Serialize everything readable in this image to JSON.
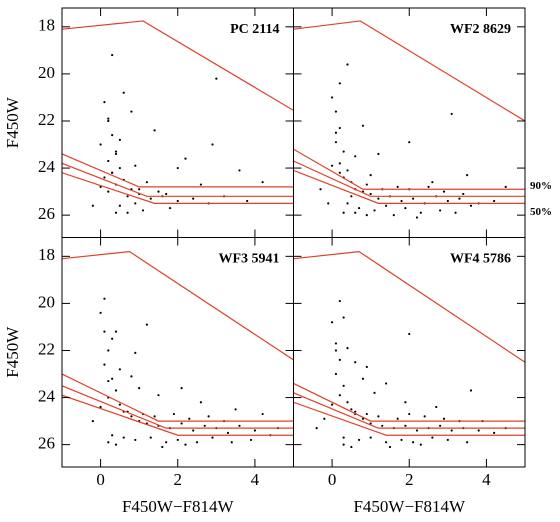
{
  "chart_data": [
    {
      "type": "scatter",
      "title": "PC 2114",
      "ylabel": "F450W",
      "xlim": [
        -1,
        5
      ],
      "ylim": [
        26.95,
        17.2
      ],
      "xticks": [
        0,
        2,
        4
      ],
      "yticks": [
        18,
        20,
        22,
        24,
        26
      ],
      "color": "#000000",
      "x": [
        0.1,
        0.2,
        0.3,
        0.0,
        0.4,
        0.2,
        0.5,
        0.3,
        0.1,
        0.6,
        0.4,
        0.8,
        0.2,
        0.7,
        1.0,
        1.3,
        0.9,
        1.6,
        2.0,
        2.4,
        1.1,
        0.5,
        1.8,
        2.8,
        3.2,
        0.3,
        0.6,
        1.4,
        2.2,
        3.6,
        0.0,
        -0.2,
        0.4,
        1.2,
        0.9,
        2.6,
        0.5,
        0.8,
        3.0,
        2.0,
        0.4,
        1.5,
        0.7,
        3.8,
        0.3,
        1.0,
        0.2,
        2.9,
        1.7,
        4.2
      ],
      "values": [
        21.2,
        22.0,
        22.6,
        23.0,
        23.4,
        23.7,
        24.0,
        24.2,
        24.4,
        24.5,
        24.7,
        24.9,
        25.0,
        25.2,
        25.1,
        25.3,
        25.5,
        25.2,
        25.4,
        25.3,
        25.8,
        25.6,
        25.7,
        25.5,
        25.2,
        19.2,
        20.8,
        22.4,
        23.6,
        24.1,
        24.8,
        25.6,
        25.9,
        24.6,
        23.9,
        24.7,
        22.8,
        21.6,
        20.2,
        24.0,
        23.3,
        25.0,
        25.9,
        25.4,
        24.2,
        24.9,
        21.9,
        23.0,
        25.1,
        24.6
      ],
      "lines": [
        {
          "color": "#e0402a",
          "x": [
            -1,
            1.1,
            5
          ],
          "values": [
            18.1,
            17.75,
            21.55
          ]
        },
        {
          "color": "#e0402a",
          "x": [
            -1,
            1.0,
            5
          ],
          "values": [
            23.4,
            24.8,
            24.8
          ]
        },
        {
          "color": "#e0402a",
          "x": [
            -1,
            1.2,
            5
          ],
          "values": [
            23.8,
            25.2,
            25.2
          ]
        },
        {
          "color": "#e0402a",
          "x": [
            -1,
            1.4,
            5
          ],
          "values": [
            24.2,
            25.5,
            25.5
          ]
        }
      ]
    },
    {
      "type": "scatter",
      "title": "WF2 8629",
      "xlim": [
        -1,
        5
      ],
      "ylim": [
        26.95,
        17.2
      ],
      "xticks": [
        0,
        2,
        4
      ],
      "yticks": [
        18,
        20,
        22,
        24,
        26
      ],
      "color": "#000000",
      "x": [
        0.0,
        0.1,
        0.2,
        0.1,
        0.3,
        0.2,
        0.4,
        0.3,
        0.5,
        0.6,
        0.2,
        0.8,
        1.0,
        1.2,
        1.5,
        1.8,
        2.1,
        2.4,
        2.7,
        3.0,
        3.3,
        3.6,
        0.4,
        0.7,
        1.1,
        1.4,
        1.9,
        2.3,
        2.8,
        3.2,
        3.8,
        4.2,
        0.6,
        0.9,
        1.3,
        1.7,
        2.0,
        2.5,
        2.9,
        3.4,
        -0.3,
        -0.1,
        0.3,
        0.5,
        1.6,
        2.2,
        0.2,
        0.1,
        0.6,
        1.0,
        3.5,
        0.9,
        2.6,
        0.4,
        4.5,
        1.2,
        0.0,
        0.8,
        2.0,
        3.1
      ],
      "values": [
        21.0,
        21.6,
        22.3,
        22.9,
        23.3,
        23.8,
        24.1,
        24.4,
        24.6,
        24.9,
        24.2,
        25.0,
        25.1,
        25.3,
        25.2,
        25.4,
        25.3,
        25.5,
        25.2,
        25.4,
        25.3,
        25.6,
        25.5,
        25.7,
        25.8,
        25.6,
        25.7,
        25.9,
        25.8,
        25.9,
        25.5,
        25.4,
        25.9,
        24.7,
        24.9,
        24.8,
        24.9,
        24.8,
        25.0,
        25.1,
        24.9,
        25.5,
        25.9,
        25.2,
        26.0,
        26.1,
        20.4,
        22.5,
        23.5,
        24.3,
        24.3,
        26.0,
        24.6,
        19.6,
        24.8,
        23.4,
        23.9,
        22.2,
        22.9,
        21.7
      ],
      "lines": [
        {
          "color": "#e0402a",
          "x": [
            -1,
            0.73,
            5
          ],
          "values": [
            18.1,
            17.75,
            22.0
          ]
        },
        {
          "color": "#e0402a",
          "x": [
            -1,
            0.8,
            5
          ],
          "values": [
            23.2,
            24.9,
            24.9
          ],
          "label": "90%"
        },
        {
          "color": "#e0402a",
          "x": [
            -1,
            1.0,
            5
          ],
          "values": [
            23.7,
            25.2,
            25.2
          ]
        },
        {
          "color": "#e0402a",
          "x": [
            -1,
            1.2,
            5
          ],
          "values": [
            24.1,
            25.5,
            25.5
          ],
          "label": "50%"
        }
      ]
    },
    {
      "type": "scatter",
      "title": "WF3 5941",
      "ylabel": "F450W",
      "xlabel": "F450W−F814W",
      "xlim": [
        -1,
        5
      ],
      "ylim": [
        26.95,
        17.2
      ],
      "xticks": [
        0,
        2,
        4
      ],
      "yticks": [
        18,
        20,
        22,
        24,
        26
      ],
      "color": "#000000",
      "x": [
        0.0,
        0.1,
        0.2,
        0.1,
        0.3,
        0.4,
        0.2,
        0.5,
        0.6,
        0.8,
        1.0,
        1.2,
        1.5,
        1.8,
        2.1,
        2.4,
        2.7,
        3.0,
        3.3,
        3.6,
        4.0,
        4.4,
        0.3,
        0.6,
        0.9,
        1.3,
        1.7,
        2.0,
        2.5,
        2.9,
        3.4,
        3.9,
        0.7,
        1.1,
        1.4,
        1.9,
        2.3,
        2.8,
        3.2,
        4.6,
        -0.2,
        0.2,
        0.4,
        1.6,
        2.2,
        0.1,
        0.3,
        0.5,
        1.0,
        2.6,
        0.0,
        0.8,
        0.4,
        3.5,
        1.5,
        0.2,
        2.1,
        0.9,
        4.2,
        1.2
      ],
      "values": [
        20.4,
        21.2,
        22.0,
        22.6,
        23.2,
        23.7,
        24.0,
        24.3,
        24.6,
        24.8,
        25.0,
        25.1,
        25.2,
        25.3,
        25.1,
        25.4,
        25.2,
        25.3,
        25.5,
        25.2,
        25.4,
        25.6,
        25.6,
        25.7,
        25.8,
        25.7,
        25.9,
        25.8,
        25.9,
        25.7,
        25.9,
        25.8,
        24.6,
        24.7,
        24.8,
        24.7,
        24.9,
        24.8,
        25.0,
        25.3,
        25.0,
        25.9,
        26.0,
        26.1,
        26.0,
        19.8,
        21.5,
        22.8,
        23.6,
        24.2,
        24.4,
        23.1,
        21.2,
        24.5,
        23.9,
        23.3,
        23.6,
        22.1,
        24.7,
        20.9
      ],
      "lines": [
        {
          "color": "#e0402a",
          "x": [
            -1,
            0.75,
            5
          ],
          "values": [
            18.1,
            17.8,
            22.4
          ]
        },
        {
          "color": "#e0402a",
          "x": [
            -1,
            1.5,
            5
          ],
          "values": [
            23.0,
            25.0,
            25.0
          ]
        },
        {
          "color": "#e0402a",
          "x": [
            -1,
            1.7,
            5
          ],
          "values": [
            23.5,
            25.3,
            25.3
          ]
        },
        {
          "color": "#e0402a",
          "x": [
            -1,
            2.0,
            5
          ],
          "values": [
            23.9,
            25.6,
            25.6
          ]
        }
      ]
    },
    {
      "type": "scatter",
      "title": "WF4 5786",
      "xlabel": "F450W−F814W",
      "xlim": [
        -1,
        5
      ],
      "ylim": [
        26.95,
        17.2
      ],
      "xticks": [
        0,
        2,
        4
      ],
      "yticks": [
        18,
        20,
        22,
        24,
        26
      ],
      "color": "#000000",
      "x": [
        0.0,
        0.1,
        0.2,
        0.1,
        0.3,
        0.2,
        0.4,
        0.5,
        0.6,
        0.8,
        1.0,
        1.3,
        1.6,
        1.9,
        2.2,
        2.5,
        2.8,
        3.1,
        3.4,
        3.8,
        4.2,
        0.3,
        0.7,
        1.0,
        1.4,
        1.8,
        2.1,
        2.6,
        3.0,
        3.5,
        0.6,
        0.9,
        1.2,
        1.7,
        2.0,
        2.4,
        2.9,
        3.3,
        3.9,
        4.5,
        -0.2,
        -0.4,
        0.3,
        0.5,
        1.5,
        2.3,
        0.2,
        0.4,
        0.8,
        1.1,
        2.7,
        0.0,
        0.6,
        0.3,
        1.9,
        3.6,
        0.9,
        0.1,
        1.4,
        2.0
      ],
      "values": [
        20.8,
        21.7,
        22.4,
        23.0,
        23.5,
        23.9,
        24.2,
        24.5,
        24.7,
        24.9,
        25.1,
        25.2,
        25.3,
        25.2,
        25.4,
        25.3,
        25.2,
        25.4,
        25.3,
        25.4,
        25.5,
        25.7,
        25.8,
        25.7,
        25.9,
        25.8,
        25.9,
        25.7,
        25.8,
        25.9,
        24.6,
        24.7,
        24.8,
        24.9,
        24.7,
        24.8,
        24.9,
        25.0,
        25.0,
        25.3,
        24.9,
        25.3,
        26.0,
        26.1,
        26.1,
        26.0,
        19.9,
        21.9,
        23.2,
        23.8,
        24.4,
        24.3,
        22.5,
        20.6,
        24.2,
        23.7,
        22.7,
        22.0,
        23.4,
        21.3
      ],
      "lines": [
        {
          "color": "#e0402a",
          "x": [
            -1,
            0.7,
            5
          ],
          "values": [
            18.1,
            17.8,
            22.5
          ]
        },
        {
          "color": "#e0402a",
          "x": [
            -1,
            1.0,
            5
          ],
          "values": [
            23.4,
            25.0,
            25.0
          ]
        },
        {
          "color": "#e0402a",
          "x": [
            -1,
            1.2,
            5
          ],
          "values": [
            23.8,
            25.3,
            25.3
          ]
        },
        {
          "color": "#e0402a",
          "x": [
            -1,
            1.4,
            5
          ],
          "values": [
            24.2,
            25.6,
            25.6
          ]
        }
      ]
    }
  ]
}
